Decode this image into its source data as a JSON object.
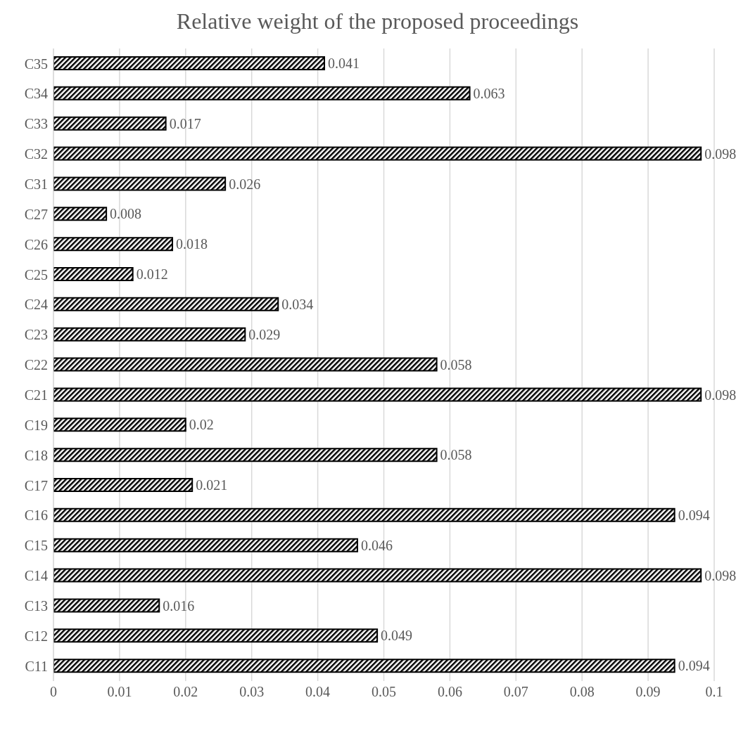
{
  "chart_data": {
    "type": "bar",
    "orientation": "horizontal",
    "title": "Relative weight of the proposed proceedings",
    "categories": [
      "C35",
      "C34",
      "C33",
      "C32",
      "C31",
      "C27",
      "C26",
      "C25",
      "C24",
      "C23",
      "C22",
      "C21",
      "C19",
      "C18",
      "C17",
      "C16",
      "C15",
      "C14",
      "C13",
      "C12",
      "C11"
    ],
    "values": [
      0.041,
      0.063,
      0.017,
      0.098,
      0.026,
      0.008,
      0.018,
      0.012,
      0.034,
      0.029,
      0.058,
      0.098,
      0.02,
      0.058,
      0.021,
      0.094,
      0.046,
      0.098,
      0.016,
      0.049,
      0.094
    ],
    "color": "#000000",
    "xlim": [
      0,
      0.1
    ],
    "xticks": [
      0,
      0.01,
      0.02,
      0.03,
      0.04,
      0.05,
      0.06,
      0.07,
      0.08,
      0.09,
      0.1
    ],
    "grid": "x",
    "data_labels": true,
    "legend": false
  }
}
